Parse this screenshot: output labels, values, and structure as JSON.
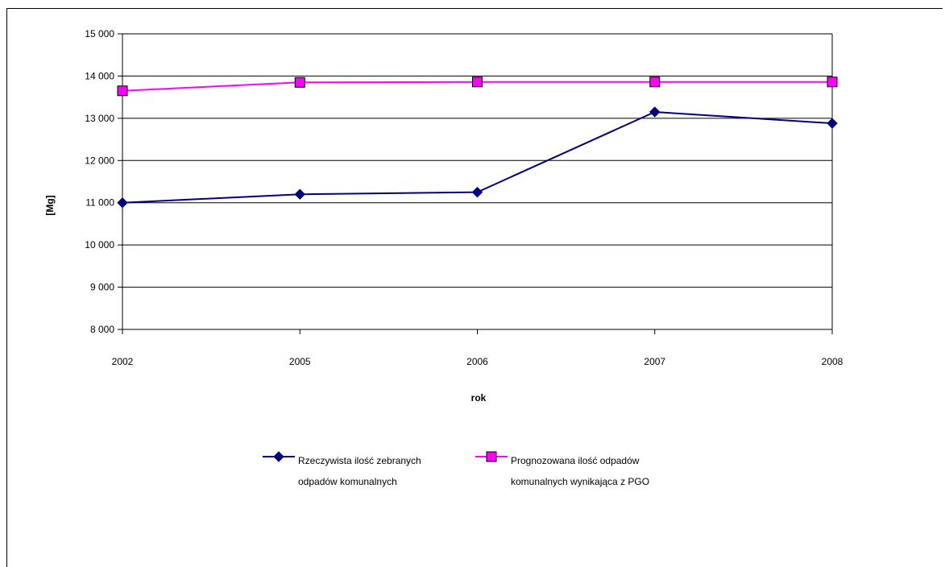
{
  "chart_data": {
    "type": "line",
    "title": "",
    "xlabel": "rok",
    "ylabel": "[Mg]",
    "categories": [
      "2002",
      "2005",
      "2006",
      "2007",
      "2008"
    ],
    "ylim": [
      8000,
      15000
    ],
    "ytick_values": [
      8000,
      9000,
      10000,
      11000,
      12000,
      13000,
      14000,
      15000
    ],
    "ytick_labels": [
      "8 000",
      "9 000",
      "10 000",
      "11 000",
      "12 000",
      "13 000",
      "14 000",
      "15 000"
    ],
    "grid": true,
    "legend_position": "bottom",
    "series": [
      {
        "name_lines": [
          "Rzeczywista ilość zebranych",
          "odpadów komunalnych"
        ],
        "values": [
          11000,
          11200,
          11250,
          13150,
          12880
        ],
        "color": "#000080",
        "marker": "diamond"
      },
      {
        "name_lines": [
          "Prognozowana ilość odpadów",
          "komunalnych wynikająca z PGO"
        ],
        "values": [
          13650,
          13850,
          13860,
          13860,
          13860
        ],
        "color": "#ff00ff",
        "marker": "square"
      }
    ]
  }
}
